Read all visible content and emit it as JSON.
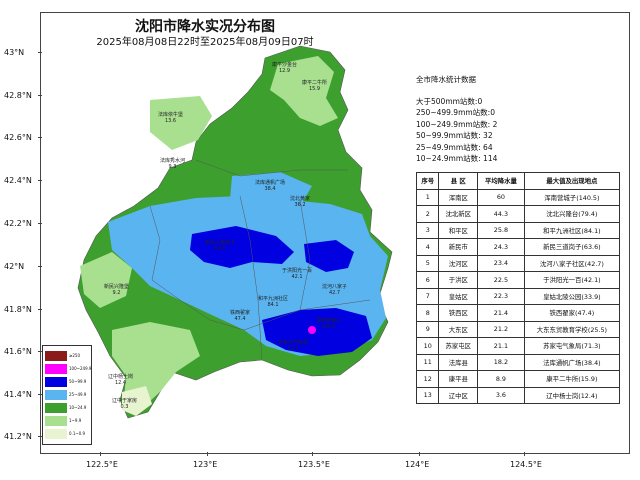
{
  "title": "沈阳市降水实况分布图",
  "subtitle": "2025年08月08日22时至2025年08月09日07时",
  "axes": {
    "lat_labels": [
      "43°N",
      "42.8°N",
      "42.6°N",
      "42.4°N",
      "42.2°N",
      "42°N",
      "41.8°N",
      "41.6°N",
      "41.4°N",
      "41.2°N"
    ],
    "lon_labels": [
      "122.5°E",
      "123°E",
      "123.5°E",
      "124°E",
      "124.5°E"
    ]
  },
  "stats": {
    "title": "全市降水统计数据",
    "lines": [
      "大于500mm站数:0",
      "250~499.9mm站数:0",
      "100~249.9mm站数: 2",
      "50~99.9mm站数: 32",
      "25~49.9mm站数: 64",
      "10~24.9mm站数: 114"
    ]
  },
  "table": {
    "headers": [
      "序号",
      "县 区",
      "平均降水量",
      "最大值及出现地点"
    ],
    "rows": [
      [
        "1",
        "浑南区",
        "60",
        "浑南营城子(140.5)"
      ],
      [
        "2",
        "沈北新区",
        "44.3",
        "沈北兴隆台(79.4)"
      ],
      [
        "3",
        "和平区",
        "25.8",
        "和平九洲社区(84.1)"
      ],
      [
        "4",
        "新民市",
        "24.3",
        "新民三道岗子(63.6)"
      ],
      [
        "5",
        "沈河区",
        "23.4",
        "沈河八家子社区(42.7)"
      ],
      [
        "6",
        "于洪区",
        "22.5",
        "于洪阳光一百(42.1)"
      ],
      [
        "7",
        "皇姑区",
        "22.3",
        "皇姑北陵公园(33.9)"
      ],
      [
        "8",
        "铁西区",
        "21.4",
        "铁西翟家(47.4)"
      ],
      [
        "9",
        "大东区",
        "21.2",
        "大东东贸教育学校(25.5)"
      ],
      [
        "10",
        "苏家屯区",
        "21.1",
        "苏家屯气象局(71.3)"
      ],
      [
        "11",
        "法库县",
        "18.2",
        "法库通帆广场(38.4)"
      ],
      [
        "12",
        "康平县",
        "8.9",
        "康平二牛所(15.9)"
      ],
      [
        "13",
        "辽中区",
        "3.6",
        "辽中杨士岗(12.4)"
      ]
    ]
  },
  "legend": [
    {
      "label": "≥250",
      "color": "#8b1a1a"
    },
    {
      "label": "100~249.9",
      "color": "#ff00ff"
    },
    {
      "label": "50~99.9",
      "color": "#0000e0"
    },
    {
      "label": "25~49.9",
      "color": "#5ab4f0"
    },
    {
      "label": "10~24.9",
      "color": "#3da02e"
    },
    {
      "label": "1~9.9",
      "color": "#a8e090"
    },
    {
      "label": "0.1~0.9",
      "color": "#e8f4d0"
    }
  ],
  "sites": [
    {
      "name": "康平沙金台",
      "value": "12.9"
    },
    {
      "name": "康平二牛所",
      "value": "15.9"
    },
    {
      "name": "法库依牛堡",
      "value": "13.6"
    },
    {
      "name": "法库秀水河",
      "value": "9.3"
    },
    {
      "name": "法库通帆广场",
      "value": "38.4"
    },
    {
      "name": "沈北黄家",
      "value": "36.2"
    },
    {
      "name": "新民三道岗子",
      "value": "63.6"
    },
    {
      "name": "于洪阳光一百",
      "value": "42.1"
    },
    {
      "name": "和平九洲社区",
      "value": "84.1"
    },
    {
      "name": "沈河八家子",
      "value": "42.7"
    },
    {
      "name": "浑南营城子",
      "value": "140.5"
    },
    {
      "name": "苏家屯气象局",
      "value": "71.3"
    },
    {
      "name": "辽中杨士岗",
      "value": "12.4"
    },
    {
      "name": "辽中于家房",
      "value": "0.3"
    },
    {
      "name": "铁西翟家",
      "value": "47.4"
    },
    {
      "name": "新民兴隆堡",
      "value": "9.2"
    }
  ],
  "colors": {
    "light_green": "#a8e090",
    "green": "#3da02e",
    "light_blue": "#5ab4f0",
    "blue": "#0000e0",
    "magenta": "#ff00ff",
    "pale": "#e8f4d0"
  }
}
